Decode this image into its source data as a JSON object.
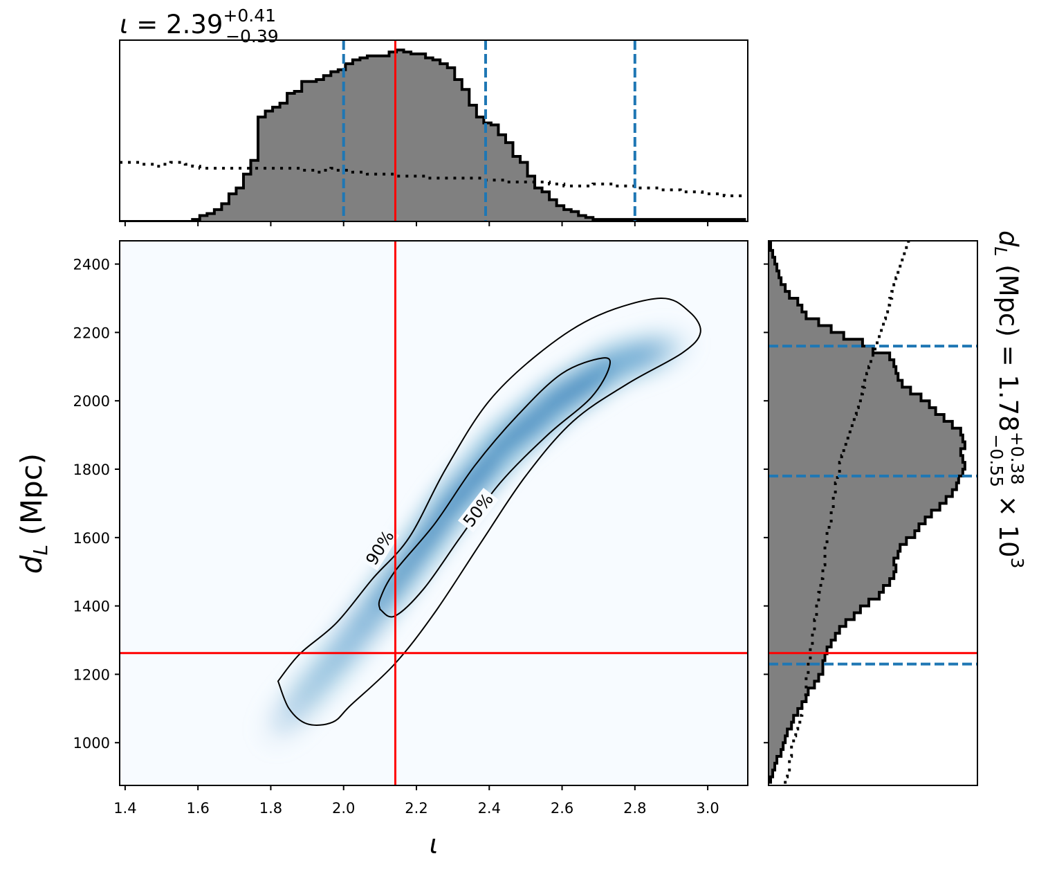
{
  "chart_data": [
    {
      "type": "histogram",
      "panel": "top-marginal",
      "title": {
        "symbol": "ι",
        "eq": " = 2.39",
        "sup": "+0.41",
        "sub": "−0.39"
      },
      "x_range": [
        1.385,
        3.11
      ],
      "bins_start": 1.385,
      "bin_width": 0.02,
      "posterior_counts": [
        0,
        0,
        0,
        0,
        0,
        0,
        0,
        0,
        0,
        0,
        1,
        3,
        4,
        6,
        9,
        14,
        17,
        24,
        31,
        53,
        56,
        58,
        60,
        65,
        66,
        71,
        71,
        72,
        74,
        76,
        77,
        80,
        82,
        83,
        84,
        84,
        84,
        86,
        87,
        86,
        85,
        85,
        83,
        82,
        80,
        78,
        72,
        67,
        59,
        53,
        50,
        49,
        44,
        40,
        33,
        30,
        23,
        17,
        15,
        11,
        8,
        6,
        5,
        3,
        2,
        1,
        1,
        1,
        1,
        1,
        1,
        1,
        1,
        1,
        1,
        1,
        1,
        1,
        1,
        1,
        1,
        1,
        1,
        1,
        1,
        1
      ],
      "prior_counts": [
        30,
        30,
        30,
        29,
        29,
        28,
        29,
        30,
        30,
        29,
        28,
        27,
        27,
        27,
        27,
        27,
        27,
        27,
        27,
        27,
        27,
        27,
        27,
        27,
        27,
        26,
        26,
        25,
        26,
        27,
        26,
        26,
        25,
        25,
        24,
        24,
        24,
        24,
        23,
        23,
        23,
        23,
        22,
        22,
        22,
        22,
        22,
        22,
        22,
        22,
        21,
        21,
        21,
        20,
        20,
        20,
        20,
        20,
        20,
        19,
        19,
        18,
        18,
        18,
        18,
        19,
        19,
        19,
        18,
        18,
        18,
        17,
        17,
        17,
        16,
        16,
        16,
        15,
        15,
        15,
        14,
        14,
        14,
        13,
        13,
        13
      ],
      "count_max": 92,
      "quantiles": [
        2.0,
        2.39,
        2.8
      ],
      "injection": 2.142,
      "colors": {
        "fill": "#808080",
        "edge": "#000000",
        "quantile": "#1f77b4",
        "injection": "#ff0000"
      }
    },
    {
      "type": "heatmap",
      "panel": "joint",
      "xlabel": "ι",
      "ylabel": {
        "symbol": "d",
        "sub": "L",
        "rest": " (Mpc)"
      },
      "x_range": [
        1.385,
        3.11
      ],
      "y_range": [
        875,
        2468
      ],
      "x_ticks": [
        "1.4",
        "1.6",
        "1.8",
        "2.0",
        "2.2",
        "2.4",
        "2.6",
        "2.8",
        "3.0"
      ],
      "x_tick_values": [
        1.4,
        1.6,
        1.8,
        2.0,
        2.2,
        2.4,
        2.6,
        2.8,
        3.0
      ],
      "y_ticks": [
        "1000",
        "1200",
        "1400",
        "1600",
        "1800",
        "2000",
        "2200",
        "2400"
      ],
      "y_tick_values": [
        1000,
        1200,
        1400,
        1600,
        1800,
        2000,
        2200,
        2400
      ],
      "density_ridge": [
        [
          1.85,
          1080
        ],
        [
          2.0,
          1270
        ],
        [
          2.15,
          1480
        ],
        [
          2.3,
          1700
        ],
        [
          2.45,
          1880
        ],
        [
          2.6,
          2010
        ],
        [
          2.75,
          2110
        ],
        [
          2.9,
          2160
        ]
      ],
      "contour_90": [
        [
          1.82,
          1180
        ],
        [
          1.85,
          1100
        ],
        [
          1.9,
          1055
        ],
        [
          1.97,
          1060
        ],
        [
          2.02,
          1110
        ],
        [
          2.14,
          1230
        ],
        [
          2.25,
          1380
        ],
        [
          2.38,
          1590
        ],
        [
          2.5,
          1780
        ],
        [
          2.63,
          1940
        ],
        [
          2.78,
          2050
        ],
        [
          2.93,
          2140
        ],
        [
          2.98,
          2200
        ],
        [
          2.95,
          2260
        ],
        [
          2.87,
          2300
        ],
        [
          2.7,
          2250
        ],
        [
          2.55,
          2150
        ],
        [
          2.4,
          2000
        ],
        [
          2.28,
          1800
        ],
        [
          2.18,
          1600
        ],
        [
          2.08,
          1480
        ],
        [
          1.98,
          1350
        ],
        [
          1.88,
          1260
        ],
        [
          1.82,
          1180
        ]
      ],
      "contour_50": [
        [
          2.1,
          1390
        ],
        [
          2.14,
          1370
        ],
        [
          2.22,
          1450
        ],
        [
          2.32,
          1600
        ],
        [
          2.43,
          1760
        ],
        [
          2.56,
          1900
        ],
        [
          2.68,
          2010
        ],
        [
          2.73,
          2100
        ],
        [
          2.71,
          2125
        ],
        [
          2.6,
          2080
        ],
        [
          2.48,
          1960
        ],
        [
          2.36,
          1810
        ],
        [
          2.25,
          1640
        ],
        [
          2.14,
          1500
        ],
        [
          2.1,
          1420
        ],
        [
          2.1,
          1390
        ]
      ],
      "contour_labels": [
        {
          "text": "90%",
          "x": 2.1,
          "y": 1570,
          "angle": -58
        },
        {
          "text": "50%",
          "x": 2.37,
          "y": 1680,
          "angle": -52
        }
      ],
      "injection": {
        "x": 2.142,
        "y": 1262
      },
      "colormap": "Blues"
    },
    {
      "type": "histogram",
      "panel": "right-marginal",
      "orientation": "horizontal",
      "title": {
        "symbol": "d",
        "sub": "L",
        "eq": " (Mpc) = 1.78",
        "sup": "+0.38",
        "sub2": "−0.55",
        "rest": " × 10",
        "exp": "3"
      },
      "y_range": [
        875,
        2468
      ],
      "bins_start": 880,
      "bin_width": 20,
      "posterior_counts": [
        1,
        2,
        3,
        4,
        6,
        7,
        8,
        9,
        11,
        12,
        14,
        16,
        18,
        19,
        22,
        24,
        26,
        26,
        27,
        28,
        30,
        32,
        34,
        37,
        41,
        44,
        48,
        53,
        55,
        58,
        60,
        61,
        60,
        62,
        63,
        66,
        70,
        72,
        75,
        78,
        82,
        85,
        88,
        90,
        91,
        93,
        94,
        93,
        92,
        94,
        93,
        92,
        88,
        84,
        80,
        77,
        73,
        68,
        64,
        62,
        61,
        60,
        58,
        50,
        45,
        36,
        30,
        24,
        18,
        16,
        14,
        10,
        8,
        6,
        5,
        4,
        3,
        2,
        1,
        1
      ],
      "prior_counts": [
        8,
        9,
        10,
        10,
        11,
        11,
        12,
        13,
        14,
        15,
        16,
        16,
        17,
        18,
        18,
        18,
        19,
        19,
        20,
        20,
        21,
        21,
        22,
        22,
        23,
        23,
        24,
        24,
        25,
        25,
        26,
        26,
        27,
        27,
        27,
        28,
        28,
        29,
        30,
        30,
        31,
        31,
        32,
        32,
        33,
        34,
        34,
        35,
        36,
        37,
        38,
        39,
        40,
        41,
        42,
        43,
        44,
        45,
        46,
        47,
        48,
        49,
        50,
        51,
        52,
        53,
        54,
        55,
        56,
        57,
        58,
        59,
        60,
        61,
        62,
        63,
        64,
        65,
        66,
        67
      ],
      "count_max": 100,
      "quantiles": [
        1230,
        1780,
        2160
      ],
      "injection": 1262,
      "colors": {
        "fill": "#808080",
        "edge": "#000000",
        "quantile": "#1f77b4",
        "injection": "#ff0000"
      }
    }
  ]
}
